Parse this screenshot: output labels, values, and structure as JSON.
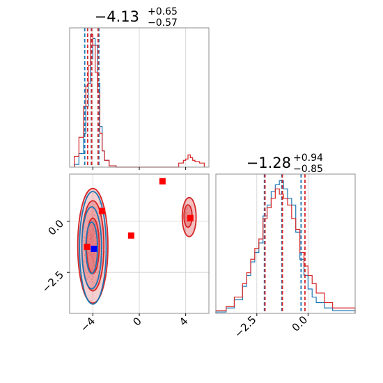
{
  "chart_data": {
    "type": "corner",
    "grid": true,
    "colors": {
      "blue": "#1f77b4",
      "red": "#d62728",
      "marker_red": "#ff0000",
      "marker_blue": "#0000ff"
    },
    "panels": [
      {
        "id": "hist-param1",
        "type": "histogram",
        "title": {
          "main": "−4.13",
          "plus": "+0.65",
          "minus": "−0.57"
        },
        "xlim": [
          -6,
          6
        ],
        "x_ticks": [
          -4,
          0,
          4
        ],
        "quantiles": {
          "blue": [
            -4.7,
            -4.13,
            -3.48
          ],
          "red": [
            -4.45,
            -4.1,
            -3.55
          ]
        },
        "series": [
          {
            "name": "",
            "color": "#1f77b4",
            "bins": [
              -5.6,
              -5.2,
              -4.8,
              -4.6,
              -4.4,
              -4.2,
              -4.0,
              -3.8,
              -3.6,
              -3.4,
              -3.2,
              -3.0,
              -2.6,
              -2.0
            ],
            "counts": [
              0.02,
              0.1,
              0.25,
              0.45,
              0.62,
              0.8,
              0.95,
              0.9,
              0.62,
              0.3,
              0.12,
              0.05,
              0.01
            ]
          },
          {
            "name": "",
            "color": "#d62728",
            "bins": [
              -5.6,
              -5.2,
              -4.8,
              -4.6,
              -4.4,
              -4.2,
              -4.0,
              -3.8,
              -3.6,
              -3.4,
              -3.2,
              -3.0,
              -2.6,
              -2.0,
              3.4,
              3.8,
              4.0,
              4.2,
              4.4,
              4.6,
              4.8,
              5.2,
              5.6
            ],
            "counts": [
              0.08,
              0.22,
              0.45,
              0.6,
              0.75,
              0.98,
              0.9,
              0.7,
              0.55,
              0.25,
              0.12,
              0.05,
              0.01,
              0,
              0.03,
              0.05,
              0.06,
              0.09,
              0.07,
              0.05,
              0.04,
              0.03
            ]
          }
        ]
      },
      {
        "id": "hist-param2",
        "type": "histogram",
        "title": {
          "main": "−1.28",
          "plus": "+0.94",
          "minus": "−0.85"
        },
        "xlim": [
          -4.5,
          2.3
        ],
        "x_ticks": [
          -2.5,
          0.0
        ],
        "x_tick_labels": [
          "−2.5",
          "0.0"
        ],
        "quantiles": {
          "blue": [
            -2.13,
            -1.28,
            -0.34
          ],
          "red": [
            -2.1,
            -1.25,
            -0.15
          ]
        },
        "series": [
          {
            "name": "",
            "color": "#1f77b4",
            "bins": [
              -4.5,
              -4.0,
              -3.6,
              -3.2,
              -3.0,
              -2.8,
              -2.6,
              -2.4,
              -2.2,
              -2.0,
              -1.8,
              -1.6,
              -1.4,
              -1.2,
              -1.0,
              -0.8,
              -0.6,
              -0.4,
              -0.2,
              0.0,
              0.2,
              0.4,
              0.8,
              1.2,
              2.3
            ],
            "counts": [
              0.01,
              0.04,
              0.1,
              0.2,
              0.28,
              0.38,
              0.45,
              0.52,
              0.72,
              0.8,
              0.9,
              0.95,
              0.98,
              0.92,
              0.85,
              0.8,
              0.6,
              0.4,
              0.28,
              0.18,
              0.12,
              0.08,
              0.04,
              0.02
            ]
          },
          {
            "name": "",
            "color": "#d62728",
            "bins": [
              -4.5,
              -4.0,
              -3.6,
              -3.2,
              -3.0,
              -2.8,
              -2.6,
              -2.4,
              -2.2,
              -2.0,
              -1.8,
              -1.6,
              -1.4,
              -1.2,
              -1.0,
              -0.8,
              -0.6,
              -0.4,
              -0.2,
              0.0,
              0.2,
              0.4,
              0.8,
              1.2,
              2.3
            ],
            "counts": [
              0.02,
              0.05,
              0.12,
              0.22,
              0.3,
              0.4,
              0.48,
              0.55,
              0.7,
              0.78,
              0.85,
              0.92,
              0.88,
              0.85,
              0.8,
              0.7,
              0.62,
              0.45,
              0.35,
              0.28,
              0.22,
              0.15,
              0.08,
              0.04
            ]
          }
        ]
      },
      {
        "id": "scatter-2d",
        "type": "2d-density",
        "xlim": [
          -6,
          6
        ],
        "ylim": [
          -4.5,
          2.3
        ],
        "x_ticks": [
          -4,
          0,
          4
        ],
        "y_ticks": [
          0.0,
          -2.5
        ],
        "y_tick_labels": [
          "0.0",
          "−2.5"
        ],
        "blue_contours": [
          {
            "cx": -4.1,
            "cy": -1.3,
            "rx": 0.5,
            "ry": 1.25
          },
          {
            "cx": -4.1,
            "cy": -1.3,
            "rx": 0.85,
            "ry": 2.0
          },
          {
            "cx": -4.0,
            "cy": -1.3,
            "rx": 1.15,
            "ry": 2.75
          }
        ],
        "red_contours": [
          {
            "cx": -4.0,
            "cy": -1.2,
            "rx": 0.55,
            "ry": 1.35
          },
          {
            "cx": -4.0,
            "cy": -1.2,
            "rx": 0.95,
            "ry": 2.2
          },
          {
            "cx": -4.0,
            "cy": -1.2,
            "rx": 1.3,
            "ry": 2.8
          },
          {
            "cx": 4.2,
            "cy": 0.25,
            "rx": 0.35,
            "ry": 0.55
          },
          {
            "cx": 4.3,
            "cy": 0.2,
            "rx": 0.6,
            "ry": 0.95
          }
        ],
        "red_markers": [
          {
            "x": 2.0,
            "y": 1.95
          },
          {
            "x": -3.2,
            "y": 0.5
          },
          {
            "x": 4.4,
            "y": 0.15
          },
          {
            "x": -0.7,
            "y": -0.7
          },
          {
            "x": -4.5,
            "y": -1.25
          }
        ],
        "blue_markers": [
          {
            "x": -3.9,
            "y": -1.35
          }
        ]
      }
    ]
  }
}
